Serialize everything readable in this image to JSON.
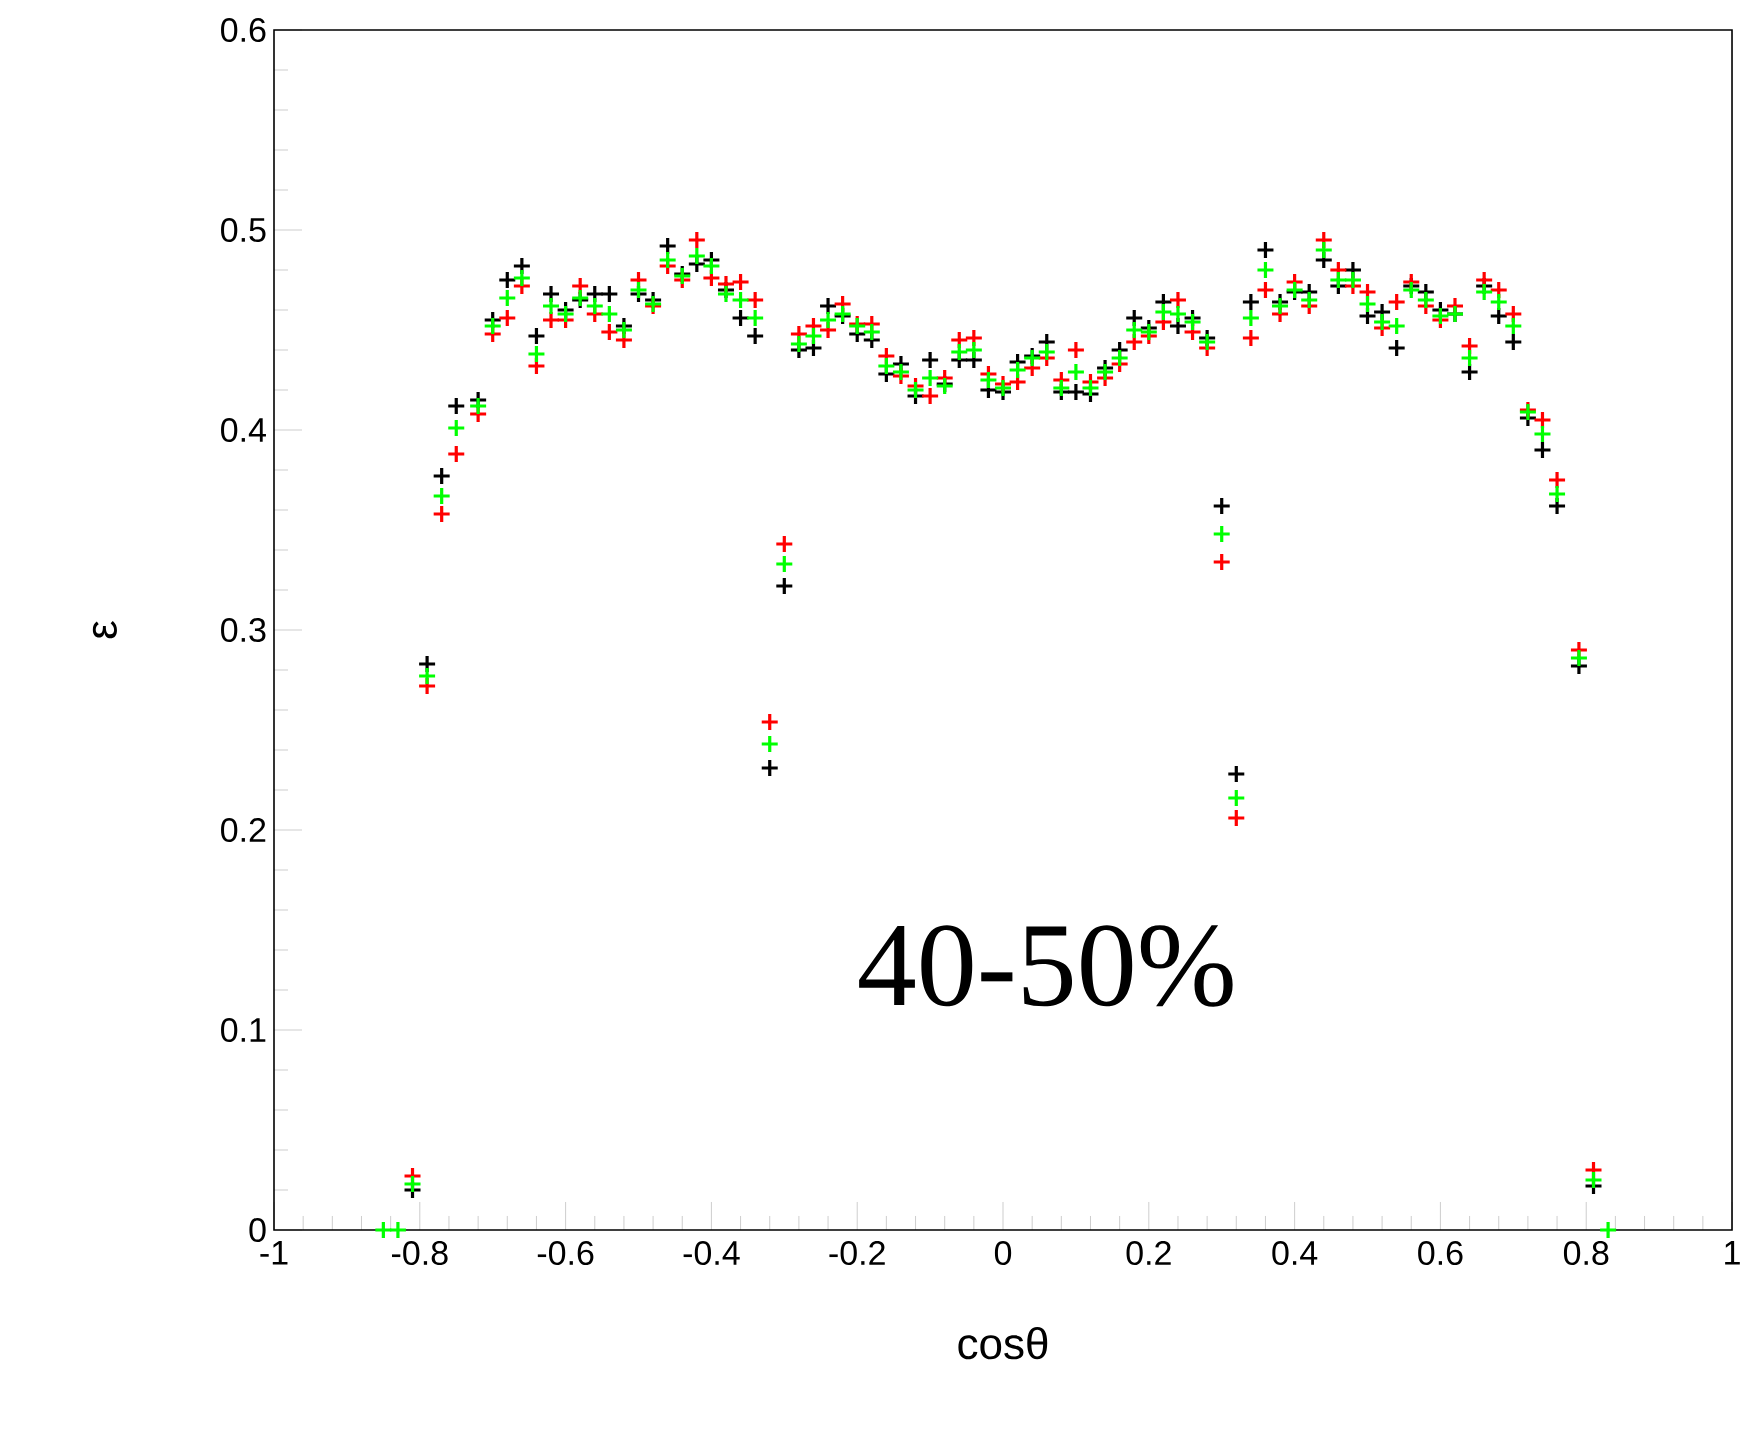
{
  "chart_data": {
    "type": "scatter",
    "xlabel": "cosθ",
    "ylabel": "ε",
    "annotations": [
      "40-50%"
    ],
    "xlim": [
      -1,
      1
    ],
    "ylim": [
      0,
      0.6
    ],
    "xticks": [
      -1,
      -0.8,
      -0.6,
      -0.4,
      -0.2,
      0,
      0.2,
      0.4,
      0.6,
      0.8,
      1
    ],
    "yticks": [
      0,
      0.1,
      0.2,
      0.3,
      0.4,
      0.5,
      0.6
    ],
    "grid": false,
    "marker": "cross",
    "x": [
      -0.85,
      -0.83,
      -0.81,
      -0.79,
      -0.77,
      -0.75,
      -0.72,
      -0.7,
      -0.68,
      -0.66,
      -0.64,
      -0.62,
      -0.6,
      -0.58,
      -0.56,
      -0.54,
      -0.52,
      -0.5,
      -0.48,
      -0.46,
      -0.44,
      -0.42,
      -0.4,
      -0.38,
      -0.36,
      -0.34,
      -0.32,
      -0.3,
      -0.28,
      -0.26,
      -0.24,
      -0.22,
      -0.2,
      -0.18,
      -0.16,
      -0.14,
      -0.12,
      -0.1,
      -0.08,
      -0.06,
      -0.04,
      -0.02,
      0,
      0.02,
      0.04,
      0.06,
      0.08,
      0.1,
      0.12,
      0.14,
      0.16,
      0.18,
      0.2,
      0.22,
      0.24,
      0.26,
      0.28,
      0.3,
      0.32,
      0.34,
      0.36,
      0.38,
      0.4,
      0.42,
      0.44,
      0.46,
      0.48,
      0.5,
      0.52,
      0.54,
      0.56,
      0.58,
      0.6,
      0.62,
      0.64,
      0.66,
      0.68,
      0.7,
      0.72,
      0.74,
      0.76,
      0.79,
      0.81,
      0.83
    ],
    "series": [
      {
        "color": "#000000",
        "values": [
          null,
          null,
          0.02,
          0.283,
          0.377,
          0.412,
          0.415,
          0.455,
          0.475,
          0.482,
          0.447,
          0.468,
          0.46,
          0.465,
          0.468,
          0.468,
          0.452,
          0.468,
          0.465,
          0.492,
          0.478,
          0.483,
          0.485,
          0.47,
          0.456,
          0.447,
          0.231,
          0.322,
          0.44,
          0.441,
          0.462,
          0.457,
          0.448,
          0.445,
          0.428,
          0.433,
          0.417,
          0.435,
          0.423,
          0.435,
          0.435,
          0.42,
          0.419,
          0.434,
          0.437,
          0.444,
          0.419,
          0.419,
          0.418,
          0.431,
          0.44,
          0.456,
          0.451,
          0.464,
          0.452,
          0.456,
          0.446,
          0.362,
          0.228,
          0.464,
          0.49,
          0.464,
          0.469,
          0.469,
          0.485,
          0.472,
          0.48,
          0.457,
          0.459,
          0.441,
          0.472,
          0.469,
          0.46,
          0.458,
          0.429,
          0.472,
          0.457,
          0.444,
          0.406,
          0.39,
          0.362,
          0.282,
          0.022,
          null
        ]
      },
      {
        "color": "#ff0000",
        "values": [
          null,
          null,
          0.027,
          0.272,
          0.358,
          0.388,
          0.408,
          0.448,
          0.456,
          0.472,
          0.432,
          0.455,
          0.455,
          0.472,
          0.458,
          0.449,
          0.445,
          0.475,
          0.462,
          0.482,
          0.475,
          0.495,
          0.476,
          0.473,
          0.474,
          0.465,
          0.254,
          0.343,
          0.448,
          0.452,
          0.45,
          0.463,
          0.453,
          0.453,
          0.437,
          0.427,
          0.422,
          0.417,
          0.426,
          0.445,
          0.446,
          0.428,
          0.423,
          0.424,
          0.431,
          0.436,
          0.425,
          0.44,
          0.424,
          0.426,
          0.433,
          0.444,
          0.447,
          0.454,
          0.465,
          0.449,
          0.441,
          0.334,
          0.206,
          0.446,
          0.47,
          0.458,
          0.474,
          0.462,
          0.495,
          0.48,
          0.472,
          0.469,
          0.451,
          0.464,
          0.474,
          0.462,
          0.455,
          0.462,
          0.442,
          0.475,
          0.47,
          0.458,
          0.41,
          0.405,
          0.375,
          0.29,
          0.03,
          null
        ]
      },
      {
        "color": "#00ff00",
        "values": [
          0,
          0,
          0.023,
          0.277,
          0.367,
          0.401,
          0.412,
          0.452,
          0.466,
          0.476,
          0.438,
          0.462,
          0.458,
          0.466,
          0.462,
          0.458,
          0.45,
          0.47,
          0.463,
          0.485,
          0.477,
          0.487,
          0.482,
          0.468,
          0.465,
          0.456,
          0.243,
          0.333,
          0.443,
          0.447,
          0.455,
          0.458,
          0.452,
          0.449,
          0.432,
          0.429,
          0.42,
          0.426,
          0.422,
          0.439,
          0.44,
          0.425,
          0.421,
          0.43,
          0.436,
          0.439,
          0.421,
          0.429,
          0.421,
          0.429,
          0.436,
          0.45,
          0.449,
          0.459,
          0.458,
          0.454,
          0.444,
          0.348,
          0.216,
          0.456,
          0.48,
          0.462,
          0.47,
          0.465,
          0.49,
          0.475,
          0.475,
          0.463,
          0.454,
          0.452,
          0.47,
          0.465,
          0.457,
          0.458,
          0.436,
          0.469,
          0.464,
          0.452,
          0.409,
          0.398,
          0.368,
          0.286,
          0.025,
          0
        ]
      }
    ]
  }
}
